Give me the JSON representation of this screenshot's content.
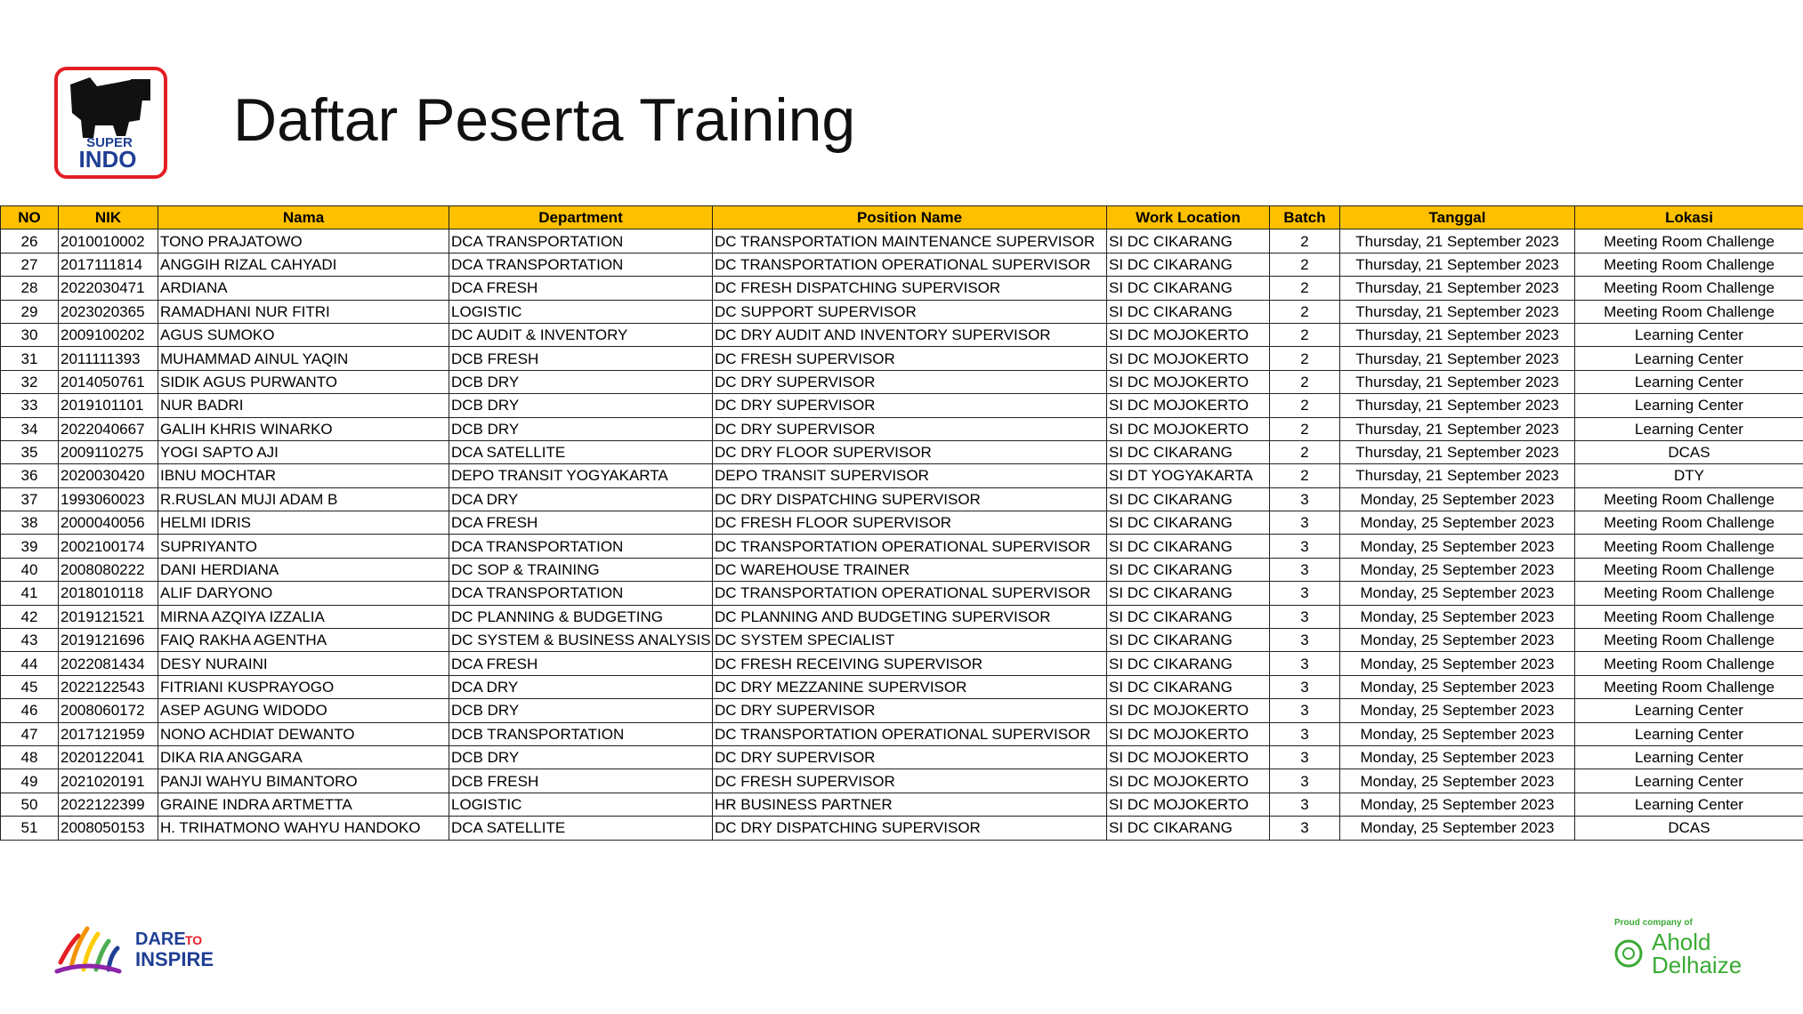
{
  "header": {
    "title": "Daftar Peserta Training",
    "logo_top": "SUPER",
    "logo_bottom": "INDO"
  },
  "table": {
    "columns": [
      "NO",
      "NIK",
      "Nama",
      "Department",
      "Position Name",
      "Work Location",
      "Batch",
      "Tanggal",
      "Lokasi"
    ],
    "rows": [
      [
        "26",
        "2010010002",
        "TONO PRAJATOWO",
        "DCA TRANSPORTATION",
        "DC TRANSPORTATION MAINTENANCE SUPERVISOR",
        "SI DC CIKARANG",
        "2",
        "Thursday, 21 September 2023",
        "Meeting Room Challenge"
      ],
      [
        "27",
        "2017111814",
        "ANGGIH RIZAL CAHYADI",
        "DCA TRANSPORTATION",
        "DC TRANSPORTATION OPERATIONAL SUPERVISOR",
        "SI DC CIKARANG",
        "2",
        "Thursday, 21 September 2023",
        "Meeting Room Challenge"
      ],
      [
        "28",
        "2022030471",
        "ARDIANA",
        "DCA FRESH",
        "DC FRESH DISPATCHING SUPERVISOR",
        "SI DC CIKARANG",
        "2",
        "Thursday, 21 September 2023",
        "Meeting Room Challenge"
      ],
      [
        "29",
        "2023020365",
        "RAMADHANI NUR FITRI",
        "LOGISTIC",
        "DC SUPPORT SUPERVISOR",
        "SI DC CIKARANG",
        "2",
        "Thursday, 21 September 2023",
        "Meeting Room Challenge"
      ],
      [
        "30",
        "2009100202",
        "AGUS SUMOKO",
        "DC AUDIT & INVENTORY",
        "DC DRY AUDIT AND INVENTORY SUPERVISOR",
        "SI DC MOJOKERTO",
        "2",
        "Thursday, 21 September 2023",
        "Learning Center"
      ],
      [
        "31",
        "2011111393",
        "MUHAMMAD AINUL YAQIN",
        "DCB FRESH",
        "DC FRESH SUPERVISOR",
        "SI DC MOJOKERTO",
        "2",
        "Thursday, 21 September 2023",
        "Learning Center"
      ],
      [
        "32",
        "2014050761",
        "SIDIK AGUS PURWANTO",
        "DCB DRY",
        "DC DRY SUPERVISOR",
        "SI DC MOJOKERTO",
        "2",
        "Thursday, 21 September 2023",
        "Learning Center"
      ],
      [
        "33",
        "2019101101",
        "NUR BADRI",
        "DCB DRY",
        "DC DRY SUPERVISOR",
        "SI DC MOJOKERTO",
        "2",
        "Thursday, 21 September 2023",
        "Learning Center"
      ],
      [
        "34",
        "2022040667",
        "GALIH KHRIS WINARKO",
        "DCB DRY",
        "DC DRY SUPERVISOR",
        "SI DC MOJOKERTO",
        "2",
        "Thursday, 21 September 2023",
        "Learning Center"
      ],
      [
        "35",
        "2009110275",
        "YOGI SAPTO AJI",
        "DCA SATELLITE",
        "DC DRY FLOOR SUPERVISOR",
        "SI DC CIKARANG",
        "2",
        "Thursday, 21 September 2023",
        "DCAS"
      ],
      [
        "36",
        "2020030420",
        "IBNU MOCHTAR",
        "DEPO TRANSIT YOGYAKARTA",
        "DEPO TRANSIT SUPERVISOR",
        "SI DT YOGYAKARTA",
        "2",
        "Thursday, 21 September 2023",
        "DTY"
      ],
      [
        "37",
        "1993060023",
        "R.RUSLAN MUJI ADAM B",
        "DCA DRY",
        "DC DRY DISPATCHING SUPERVISOR",
        "SI DC CIKARANG",
        "3",
        "Monday, 25 September 2023",
        "Meeting Room Challenge"
      ],
      [
        "38",
        "2000040056",
        "HELMI IDRIS",
        "DCA FRESH",
        "DC FRESH FLOOR SUPERVISOR",
        "SI DC CIKARANG",
        "3",
        "Monday, 25 September 2023",
        "Meeting Room Challenge"
      ],
      [
        "39",
        "2002100174",
        "SUPRIYANTO",
        "DCA TRANSPORTATION",
        "DC TRANSPORTATION OPERATIONAL SUPERVISOR",
        "SI DC CIKARANG",
        "3",
        "Monday, 25 September 2023",
        "Meeting Room Challenge"
      ],
      [
        "40",
        "2008080222",
        "DANI HERDIANA",
        "DC SOP & TRAINING",
        "DC WAREHOUSE TRAINER",
        "SI DC CIKARANG",
        "3",
        "Monday, 25 September 2023",
        "Meeting Room Challenge"
      ],
      [
        "41",
        "2018010118",
        "ALIF DARYONO",
        "DCA TRANSPORTATION",
        "DC TRANSPORTATION OPERATIONAL SUPERVISOR",
        "SI DC CIKARANG",
        "3",
        "Monday, 25 September 2023",
        "Meeting Room Challenge"
      ],
      [
        "42",
        "2019121521",
        "MIRNA AZQIYA IZZALIA",
        "DC PLANNING & BUDGETING",
        "DC PLANNING AND BUDGETING SUPERVISOR",
        "SI DC CIKARANG",
        "3",
        "Monday, 25 September 2023",
        "Meeting Room Challenge"
      ],
      [
        "43",
        "2019121696",
        "FAIQ RAKHA AGENTHA",
        "DC SYSTEM & BUSINESS ANALYSIS",
        "DC SYSTEM SPECIALIST",
        "SI DC CIKARANG",
        "3",
        "Monday, 25 September 2023",
        "Meeting Room Challenge"
      ],
      [
        "44",
        "2022081434",
        "DESY NURAINI",
        "DCA FRESH",
        "DC FRESH RECEIVING SUPERVISOR",
        "SI DC CIKARANG",
        "3",
        "Monday, 25 September 2023",
        "Meeting Room Challenge"
      ],
      [
        "45",
        "2022122543",
        "FITRIANI KUSPRAYOGO",
        "DCA DRY",
        "DC DRY MEZZANINE SUPERVISOR",
        "SI DC CIKARANG",
        "3",
        "Monday, 25 September 2023",
        "Meeting Room Challenge"
      ],
      [
        "46",
        "2008060172",
        "ASEP AGUNG WIDODO",
        "DCB DRY",
        "DC DRY SUPERVISOR",
        "SI DC MOJOKERTO",
        "3",
        "Monday, 25 September 2023",
        "Learning Center"
      ],
      [
        "47",
        "2017121959",
        "NONO ACHDIAT DEWANTO",
        "DCB TRANSPORTATION",
        "DC TRANSPORTATION OPERATIONAL SUPERVISOR",
        "SI DC MOJOKERTO",
        "3",
        "Monday, 25 September 2023",
        "Learning Center"
      ],
      [
        "48",
        "2020122041",
        "DIKA RIA ANGGARA",
        "DCB DRY",
        "DC DRY SUPERVISOR",
        "SI DC MOJOKERTO",
        "3",
        "Monday, 25 September 2023",
        "Learning Center"
      ],
      [
        "49",
        "2021020191",
        "PANJI WAHYU BIMANTORO",
        "DCB FRESH",
        "DC FRESH SUPERVISOR",
        "SI DC MOJOKERTO",
        "3",
        "Monday, 25 September 2023",
        "Learning Center"
      ],
      [
        "50",
        "2022122399",
        "GRAINE INDRA ARTMETTA",
        "LOGISTIC",
        "HR BUSINESS PARTNER",
        "SI DC MOJOKERTO",
        "3",
        "Monday, 25 September 2023",
        "Learning Center"
      ],
      [
        "51",
        "2008050153",
        "H. TRIHATMONO WAHYU HANDOKO",
        "DCA SATELLITE",
        "DC DRY DISPATCHING SUPERVISOR",
        "SI DC CIKARANG",
        "3",
        "Monday, 25 September 2023",
        "DCAS"
      ]
    ]
  },
  "footer": {
    "left_line1": "DARE",
    "left_line1b": "TO",
    "left_line2": "INSPIRE",
    "right_small": "Proud company of",
    "right_line1": "Ahold",
    "right_line2": "Delhaize"
  }
}
